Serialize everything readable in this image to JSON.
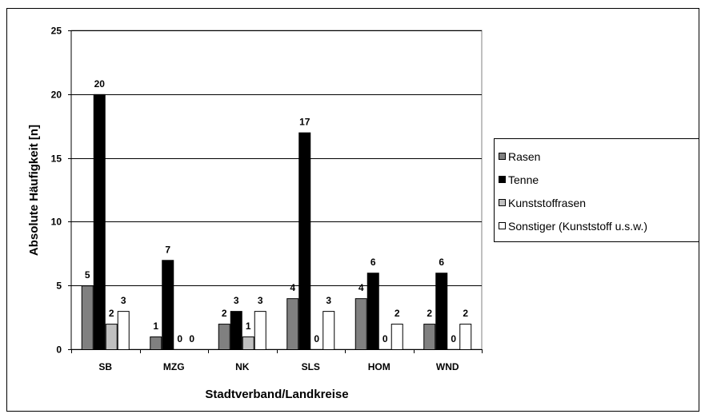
{
  "chart_data": {
    "type": "bar",
    "categories": [
      "SB",
      "MZG",
      "NK",
      "SLS",
      "HOM",
      "WND"
    ],
    "series": [
      {
        "name": "Rasen",
        "color": "#808080",
        "values": [
          5,
          1,
          2,
          4,
          4,
          2
        ],
        "labels": [
          "5",
          "1",
          "2",
          "4",
          "4",
          "2"
        ]
      },
      {
        "name": "Tenne",
        "color": "#000000",
        "values": [
          20,
          7,
          3,
          17,
          6,
          6
        ],
        "labels": [
          "20",
          "7",
          "3",
          "17",
          "6",
          "6"
        ]
      },
      {
        "name": "Kunststoffrasen",
        "color": "#c0c0c0",
        "values": [
          2,
          0,
          1,
          0,
          0,
          0
        ],
        "labels": [
          "2",
          "0",
          "1",
          "0",
          "0",
          "0"
        ]
      },
      {
        "name": "Sonstiger (Kunststoff u.s.w.)",
        "color": "#ffffff",
        "values": [
          3,
          0,
          3,
          3,
          2,
          2
        ],
        "labels": [
          "3",
          "0",
          "3",
          "3",
          "2",
          "2"
        ]
      }
    ],
    "xlabel": "Stadtverband/Landkreise",
    "ylabel": "Absolute Häufigkeit [n]",
    "ylim": [
      0,
      25
    ],
    "yticks": [
      "0",
      "5",
      "10",
      "15",
      "20",
      "25"
    ],
    "grid": true,
    "legend_position": "right"
  }
}
